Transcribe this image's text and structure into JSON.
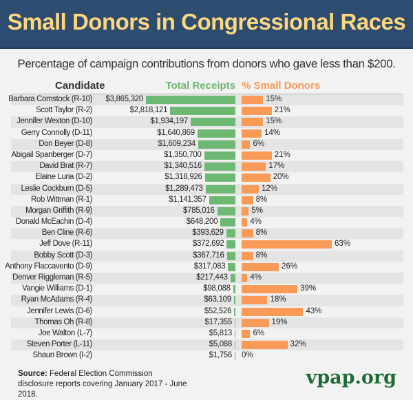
{
  "title": "Small Donors in Congressional Races",
  "subtitle": "Percentage of campaign contributions from donors who gave less than $200.",
  "chart_data": {
    "type": "table",
    "columns": [
      "Candidate",
      "Total Receipts",
      "% Small Donors"
    ],
    "colors": {
      "receipts": "#6db872",
      "small_donors": "#f99a56",
      "header_bg": "#2d4c70",
      "title": "#fdd77e"
    },
    "rows": [
      {
        "candidate": "Barbara Comstock (R-10)",
        "receipts": 3865320,
        "receipts_label": "$3,865,320",
        "pct": 15
      },
      {
        "candidate": "Scott Taylor (R-2)",
        "receipts": 2818121,
        "receipts_label": "$2,818,121",
        "pct": 21
      },
      {
        "candidate": "Jennifer Wexton (D-10)",
        "receipts": 1934197,
        "receipts_label": "$1,934,197",
        "pct": 15
      },
      {
        "candidate": "Gerry Connolly (D-11)",
        "receipts": 1640869,
        "receipts_label": "$1,640,869",
        "pct": 14
      },
      {
        "candidate": "Don Beyer (D-8)",
        "receipts": 1609234,
        "receipts_label": "$1,609,234",
        "pct": 6
      },
      {
        "candidate": "Abigail Spanberger (D-7)",
        "receipts": 1350700,
        "receipts_label": "$1,350,700",
        "pct": 21
      },
      {
        "candidate": "David Brat (R-7)",
        "receipts": 1340516,
        "receipts_label": "$1,340,516",
        "pct": 17
      },
      {
        "candidate": "Elaine Luria (D-2)",
        "receipts": 1318926,
        "receipts_label": "$1,318,926",
        "pct": 20
      },
      {
        "candidate": "Leslie Cockburn (D-5)",
        "receipts": 1289473,
        "receipts_label": "$1,289,473",
        "pct": 12
      },
      {
        "candidate": "Rob Wittman (R-1)",
        "receipts": 1141357,
        "receipts_label": "$1,141,357",
        "pct": 8
      },
      {
        "candidate": "Morgan Griffith (R-9)",
        "receipts": 785016,
        "receipts_label": "$785,016",
        "pct": 5
      },
      {
        "candidate": "Donald McEachin (D-4)",
        "receipts": 648200,
        "receipts_label": "$648,200",
        "pct": 4
      },
      {
        "candidate": "Ben Cline (R-6)",
        "receipts": 393629,
        "receipts_label": "$393,629",
        "pct": 8
      },
      {
        "candidate": "Jeff Dove (R-11)",
        "receipts": 372692,
        "receipts_label": "$372,692",
        "pct": 63
      },
      {
        "candidate": "Bobby Scott (D-3)",
        "receipts": 367716,
        "receipts_label": "$367,716",
        "pct": 8
      },
      {
        "candidate": "Anthony Flaccavento (D-9)",
        "receipts": 317083,
        "receipts_label": "$317,083",
        "pct": 26
      },
      {
        "candidate": "Denver Riggleman (R-5)",
        "receipts": 217443,
        "receipts_label": "$217,443",
        "pct": 4
      },
      {
        "candidate": "Vangie Williams (D-1)",
        "receipts": 98088,
        "receipts_label": "$98,088",
        "pct": 39
      },
      {
        "candidate": "Ryan McAdams (R-4)",
        "receipts": 63109,
        "receipts_label": "$63,109",
        "pct": 18
      },
      {
        "candidate": "Jennifer Lewis (D-6)",
        "receipts": 52526,
        "receipts_label": "$52,526",
        "pct": 43
      },
      {
        "candidate": "Thomas Oh (R-8)",
        "receipts": 17355,
        "receipts_label": "$17,355",
        "pct": 19
      },
      {
        "candidate": "Joe Walton (L-7)",
        "receipts": 5813,
        "receipts_label": "$5,813",
        "pct": 6
      },
      {
        "candidate": "Steven Porter (L-11)",
        "receipts": 5088,
        "receipts_label": "$5,088",
        "pct": 32
      },
      {
        "candidate": "Shaun Brown (I-2)",
        "receipts": 1756,
        "receipts_label": "$1,756",
        "pct": 0
      }
    ]
  },
  "source_label": "Source:",
  "source_text": "Federal Election Commission disclosure reports covering January 2017 - June 2018.",
  "logo": "vpap.org"
}
